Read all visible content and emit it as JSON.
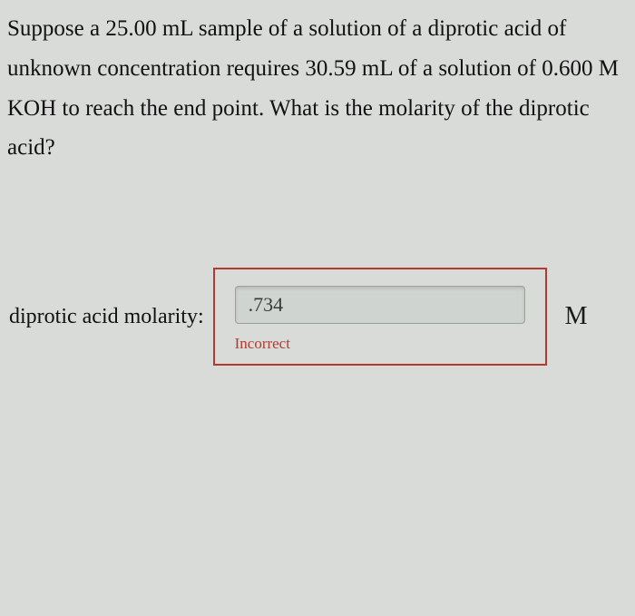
{
  "question": {
    "text": "Suppose a 25.00 mL sample of a solution of a diprotic acid of unknown concentration requires 30.59 mL of a solution of 0.600 M KOH to reach the end point. What is the molarity of the diprotic acid?"
  },
  "answer": {
    "label": "diprotic acid molarity:",
    "value": ".734",
    "unit": "M",
    "feedback": "Incorrect",
    "feedback_color": "#b43a2f",
    "box_border_color": "#b43a2f",
    "input_background": "#d0d4d0",
    "input_border": "#9aa29a"
  },
  "style": {
    "page_background": "#d8dbd8",
    "text_color": "#111",
    "question_fontsize": 25,
    "label_fontsize": 24,
    "input_fontsize": 22,
    "unit_fontsize": 28,
    "feedback_fontsize": 17
  }
}
